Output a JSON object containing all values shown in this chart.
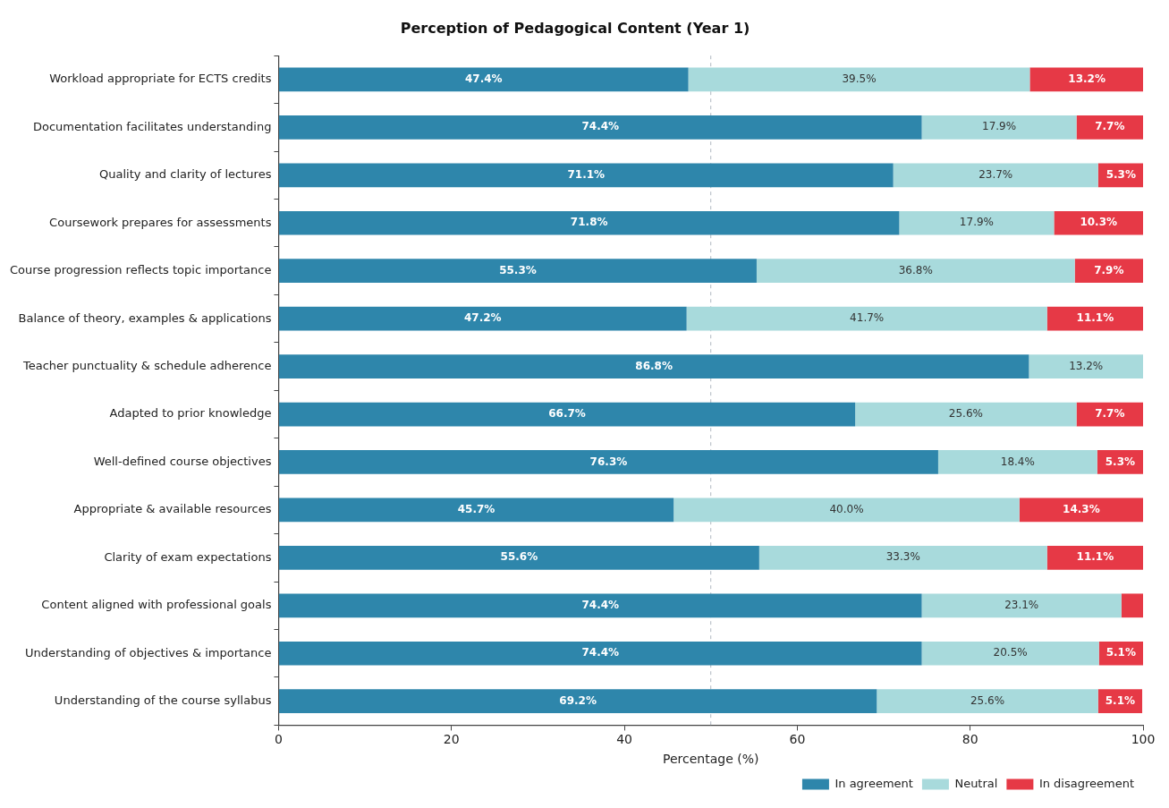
{
  "chart_data": {
    "type": "bar",
    "orientation": "horizontal",
    "stacked": true,
    "title": "Perception of Pedagogical Content (Year 1)",
    "xlabel": "Percentage (%)",
    "categories": [
      "Workload appropriate for ECTS credits",
      "Documentation facilitates understanding",
      "Quality and clarity of lectures",
      "Coursework prepares for assessments",
      "Course progression reflects topic importance",
      "Balance of theory, examples & applications",
      "Teacher punctuality & schedule adherence",
      "Adapted to prior knowledge",
      "Well-defined course objectives",
      "Appropriate & available resources",
      "Clarity of exam expectations",
      "Content aligned with professional goals",
      "Understanding of objectives & importance",
      "Understanding of the course syllabus"
    ],
    "series": [
      {
        "name": "In agreement",
        "color": "#2e86ab",
        "values": [
          47.4,
          74.4,
          71.1,
          71.8,
          55.3,
          47.2,
          86.8,
          66.7,
          76.3,
          45.7,
          55.6,
          74.4,
          74.4,
          69.2
        ],
        "value_labels": [
          "47.4%",
          "74.4%",
          "71.1%",
          "71.8%",
          "55.3%",
          "47.2%",
          "86.8%",
          "66.7%",
          "76.3%",
          "45.7%",
          "55.6%",
          "74.4%",
          "74.4%",
          "69.2%"
        ]
      },
      {
        "name": "Neutral",
        "color": "#a8dadc",
        "values": [
          39.5,
          17.9,
          23.7,
          17.9,
          36.8,
          41.7,
          13.2,
          25.6,
          18.4,
          40.0,
          33.3,
          23.1,
          20.5,
          25.6
        ],
        "value_labels": [
          "39.5%",
          "17.9%",
          "23.7%",
          "17.9%",
          "36.8%",
          "41.7%",
          "13.2%",
          "25.6%",
          "18.4%",
          "40.0%",
          "33.3%",
          "23.1%",
          "20.5%",
          "25.6%"
        ]
      },
      {
        "name": "In disagreement",
        "color": "#e63946",
        "values": [
          13.2,
          7.7,
          5.3,
          10.3,
          7.9,
          11.1,
          0,
          7.7,
          5.3,
          14.3,
          11.1,
          2.6,
          5.1,
          5.1
        ],
        "value_labels": [
          "13.2%",
          "7.7%",
          "5.3%",
          "10.3%",
          "7.9%",
          "11.1%",
          null,
          "7.7%",
          "5.3%",
          "14.3%",
          "11.1%",
          null,
          "5.1%",
          "5.1%"
        ]
      }
    ],
    "xlim": [
      0,
      100
    ],
    "xticks": [
      0,
      20,
      40,
      60,
      80,
      100
    ],
    "grid": false,
    "legend": "bottom right",
    "ref_lines": [
      {
        "axis": "x",
        "value": 50,
        "color": "#b0b8c0",
        "line_style": "dashed"
      }
    ]
  }
}
